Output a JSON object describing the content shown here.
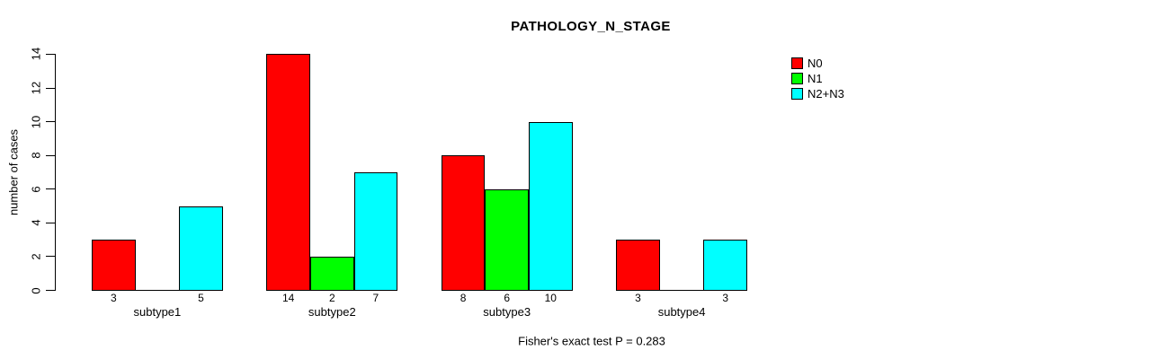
{
  "chart_data": {
    "type": "bar",
    "title": "PATHOLOGY_N_STAGE",
    "ylabel": "number of cases",
    "xlabel": "",
    "annotation": "Fisher's exact test P = 0.283",
    "categories": [
      "subtype1",
      "subtype2",
      "subtype3",
      "subtype4"
    ],
    "series": [
      {
        "name": "N0",
        "color": "#FF0000",
        "values": [
          3,
          14,
          8,
          3
        ]
      },
      {
        "name": "N1",
        "color": "#00FF00",
        "values": [
          0,
          2,
          6,
          0
        ]
      },
      {
        "name": "N2+N3",
        "color": "#00FFFF",
        "values": [
          5,
          7,
          10,
          3
        ]
      }
    ],
    "bar_labels": [
      [
        "3",
        "",
        "5"
      ],
      [
        "14",
        "2",
        "7"
      ],
      [
        "8",
        "6",
        "10"
      ],
      [
        "3",
        "",
        "3"
      ]
    ],
    "yticks": [
      0,
      2,
      4,
      6,
      8,
      10,
      12,
      14
    ],
    "ylim": [
      0,
      14
    ],
    "grid": false,
    "legend_position": "right",
    "bar_border_color": "#000000",
    "axis_color": "#000000",
    "background_color": "#FFFFFF"
  }
}
